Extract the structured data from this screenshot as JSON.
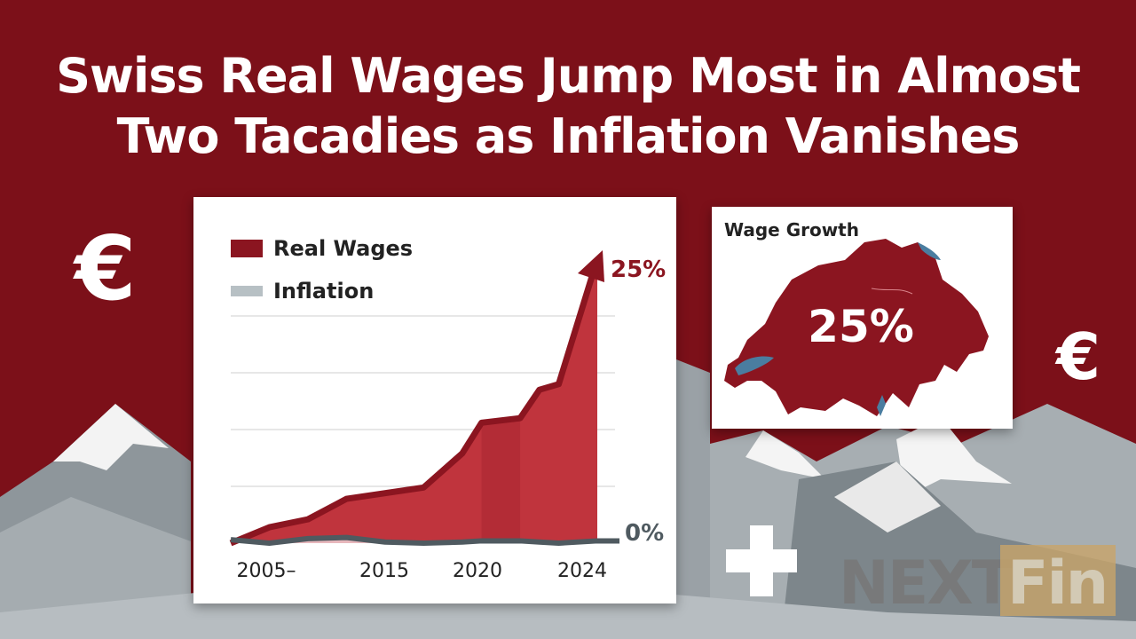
{
  "headline": {
    "line1": "Swiss Real Wages Jump Most in Almost",
    "line2": "Two Tacadies as Inflation Vanishes"
  },
  "symbols": {
    "currency": "€"
  },
  "colors": {
    "background": "#7c1019",
    "real_wages": "#8b1520",
    "real_wages_fill": "#c0343d",
    "inflation": "#4f5a60",
    "inflation_fill": "#e7b7bc",
    "map_fill": "#8b1520",
    "lakes": "#4a7da0"
  },
  "chart_data": {
    "type": "area",
    "legend": [
      {
        "name": "Real Wages",
        "color": "#8b1520"
      },
      {
        "name": "Inflation",
        "color": "#b7c0c4"
      }
    ],
    "x_tick_labels": [
      "2005–",
      "2015",
      "2020",
      "2024"
    ],
    "x": [
      2005,
      2007,
      2009,
      2011,
      2013,
      2015,
      2017,
      2018,
      2020,
      2021,
      2022,
      2024
    ],
    "series": [
      {
        "name": "Real Wages",
        "values": [
          0,
          1.4,
          2.1,
          3.9,
          4.4,
          4.9,
          7.9,
          10.6,
          11.0,
          13.5,
          14.0,
          25
        ]
      },
      {
        "name": "Inflation",
        "values": [
          0.3,
          0,
          0.4,
          0.5,
          0.1,
          0,
          0.1,
          0.2,
          0.2,
          0.1,
          0,
          0.2
        ]
      }
    ],
    "end_labels": {
      "real_wages": "25%",
      "inflation": "0%"
    },
    "ylim": [
      0,
      25
    ],
    "grid": true
  },
  "map_panel": {
    "title": "Wage Growth",
    "value_label": "25%",
    "region": "Switzerland"
  },
  "logo": {
    "text": "NEXT",
    "box_text": "Fin"
  }
}
